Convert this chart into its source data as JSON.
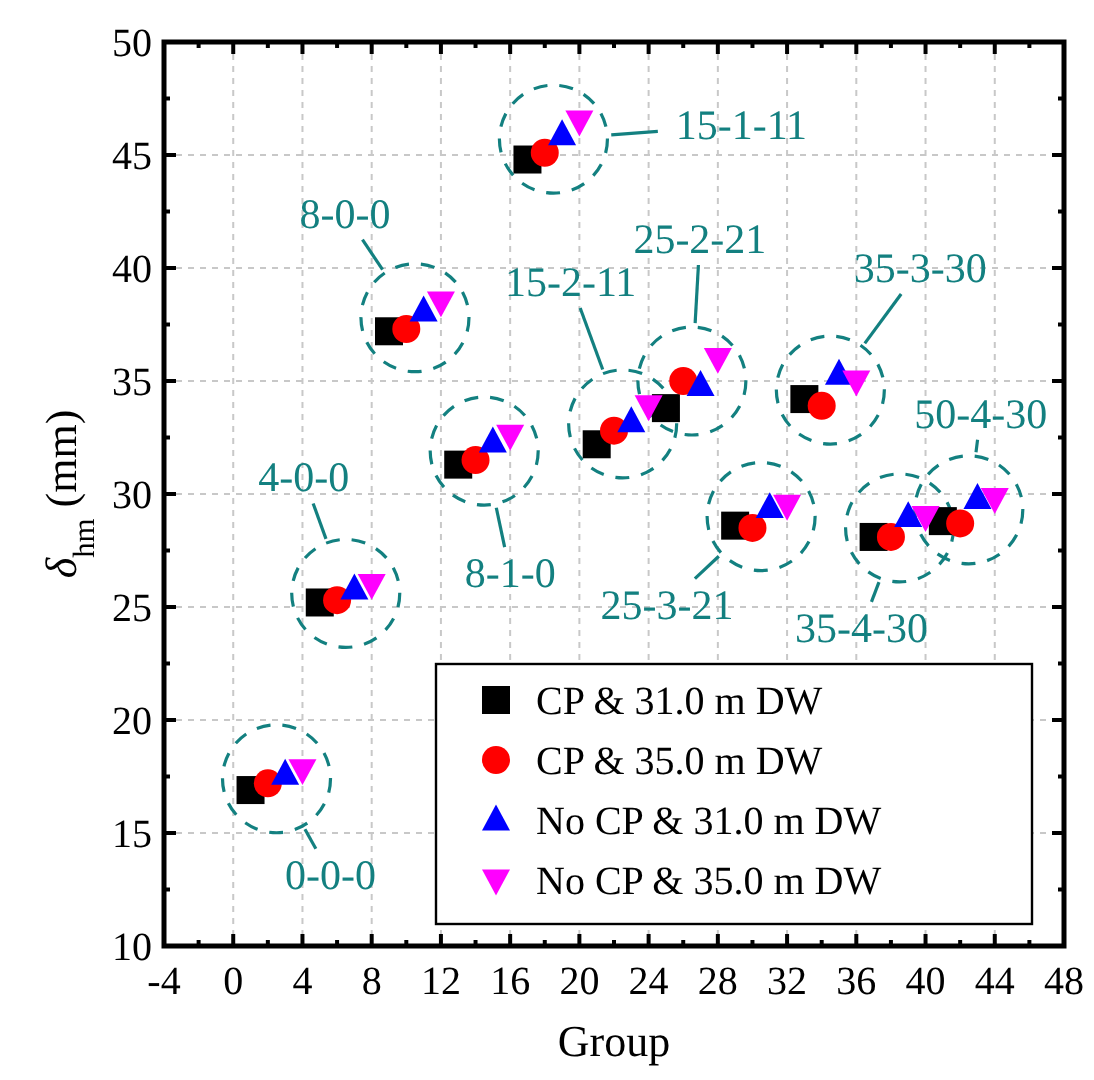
{
  "chart_data": {
    "type": "scatter",
    "xlabel": "Group",
    "ylabel": "δ$_{hm}$ (mm)",
    "xlim": [
      -4,
      48
    ],
    "ylim": [
      10,
      50
    ],
    "xticks": [
      -4,
      0,
      4,
      8,
      12,
      16,
      20,
      24,
      28,
      32,
      36,
      40,
      44,
      48
    ],
    "yticks": [
      10,
      15,
      20,
      25,
      30,
      35,
      40,
      45,
      50
    ],
    "grid": true,
    "legend": "bottom right",
    "series": [
      {
        "name": "CP & 31.0 m DW",
        "color": "#000000",
        "marker": "square",
        "x": [
          1,
          5,
          9,
          13,
          17,
          21,
          25,
          29,
          33,
          37,
          41
        ],
        "values": [
          16.9,
          25.2,
          37.2,
          31.3,
          44.8,
          32.2,
          33.8,
          28.6,
          34.2,
          28.1,
          28.8
        ]
      },
      {
        "name": "CP & 35.0 m DW",
        "color": "#ff0000",
        "marker": "circle",
        "x": [
          2,
          6,
          10,
          14,
          18,
          22,
          26,
          30,
          34,
          38,
          42
        ],
        "values": [
          17.2,
          25.3,
          37.3,
          31.5,
          45.1,
          32.8,
          35.0,
          28.5,
          33.9,
          28.1,
          28.7
        ]
      },
      {
        "name": "No CP & 31.0 m DW",
        "color": "#0000ff",
        "marker": "triangle",
        "x": [
          3,
          7,
          11,
          15,
          19,
          23,
          27,
          31,
          35,
          39,
          43
        ],
        "values": [
          17.6,
          25.8,
          38.1,
          32.3,
          45.9,
          33.2,
          34.8,
          29.4,
          35.3,
          29.0,
          29.8
        ]
      },
      {
        "name": "No CP & 35.0 m DW",
        "color": "#ff00ff",
        "marker": "triangle-down",
        "x": [
          4,
          8,
          12,
          16,
          20,
          24,
          28,
          32,
          36,
          40,
          44
        ],
        "values": [
          17.8,
          26.0,
          38.5,
          32.6,
          46.5,
          33.9,
          36.0,
          29.5,
          35.0,
          29.0,
          29.8
        ]
      }
    ],
    "annotations": [
      {
        "text": "0-0-0",
        "x": 2.5,
        "y": 17.4
      },
      {
        "text": "4-0-0",
        "x": 6.5,
        "y": 25.6
      },
      {
        "text": "8-0-0",
        "x": 10.5,
        "y": 37.8
      },
      {
        "text": "8-1-0",
        "x": 14.5,
        "y": 31.9
      },
      {
        "text": "15-1-11",
        "x": 18.5,
        "y": 45.7
      },
      {
        "text": "15-2-11",
        "x": 22.5,
        "y": 33.1
      },
      {
        "text": "25-2-21",
        "x": 26.5,
        "y": 35.0
      },
      {
        "text": "25-3-21",
        "x": 30.5,
        "y": 29.0
      },
      {
        "text": "35-3-30",
        "x": 34.5,
        "y": 34.6
      },
      {
        "text": "35-4-30",
        "x": 38.5,
        "y": 28.5
      },
      {
        "text": "50-4-30",
        "x": 42.5,
        "y": 29.3
      }
    ]
  }
}
